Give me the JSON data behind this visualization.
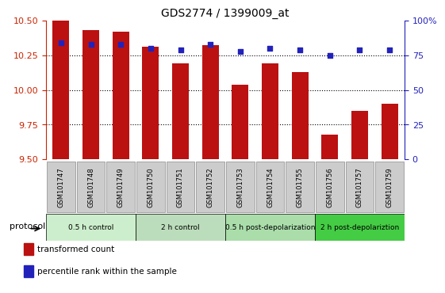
{
  "title": "GDS2774 / 1399009_at",
  "samples": [
    "GSM101747",
    "GSM101748",
    "GSM101749",
    "GSM101750",
    "GSM101751",
    "GSM101752",
    "GSM101753",
    "GSM101754",
    "GSM101755",
    "GSM101756",
    "GSM101757",
    "GSM101759"
  ],
  "bar_values": [
    10.5,
    10.43,
    10.42,
    10.31,
    10.19,
    10.32,
    10.04,
    10.19,
    10.13,
    9.68,
    9.85,
    9.9
  ],
  "dot_values": [
    84,
    83,
    83,
    80,
    79,
    83,
    78,
    80,
    79,
    75,
    79,
    79
  ],
  "bar_bottom": 9.5,
  "ylim_left": [
    9.5,
    10.5
  ],
  "ylim_right": [
    0,
    100
  ],
  "yticks_left": [
    9.5,
    9.75,
    10.0,
    10.25,
    10.5
  ],
  "yticks_right": [
    0,
    25,
    50,
    75,
    100
  ],
  "bar_color": "#bb1111",
  "dot_color": "#2222bb",
  "groups": [
    {
      "label": "0.5 h control",
      "start": 0,
      "end": 3,
      "color": "#cceecc"
    },
    {
      "label": "2 h control",
      "start": 3,
      "end": 6,
      "color": "#bbddbb"
    },
    {
      "label": "0.5 h post-depolarization",
      "start": 6,
      "end": 9,
      "color": "#aaddaa"
    },
    {
      "label": "2 h post-depolariztion",
      "start": 9,
      "end": 12,
      "color": "#44cc44"
    }
  ],
  "legend_items": [
    {
      "label": "transformed count",
      "color": "#bb1111"
    },
    {
      "label": "percentile rank within the sample",
      "color": "#2222bb"
    }
  ],
  "protocol_label": "protocol",
  "tick_label_color_left": "#cc2200",
  "tick_label_color_right": "#2222bb",
  "sample_box_color": "#cccccc",
  "sample_box_edge": "#888888",
  "plot_bg": "#ffffff"
}
